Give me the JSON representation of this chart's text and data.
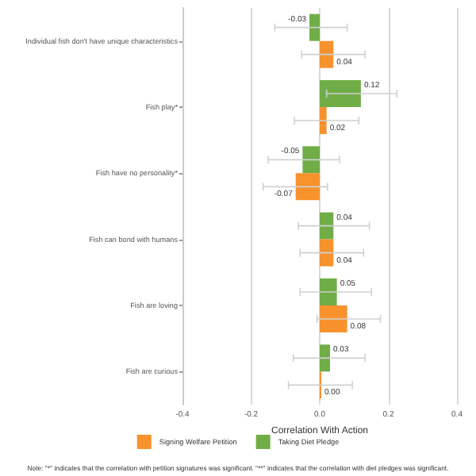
{
  "chart_data": {
    "type": "bar",
    "orientation": "horizontal",
    "xlabel": "Correlation With Action",
    "categories": [
      "Individual fish don't have unique characteristics",
      "Fish play*",
      "Fish have no personality*",
      "Fish can bond with humans",
      "Fish are loving",
      "Fish are curious"
    ],
    "series": [
      {
        "name": "Signing Welfare Petition",
        "color": "#f7922d",
        "values": [
          0.04,
          0.02,
          -0.07,
          0.04,
          0.08,
          0.0
        ],
        "errors": [
          [
            -0.053,
            0.132
          ],
          [
            -0.074,
            0.114
          ],
          [
            -0.165,
            0.023
          ],
          [
            -0.057,
            0.128
          ],
          [
            -0.008,
            0.177
          ],
          [
            -0.091,
            0.095
          ]
        ],
        "value_labels": [
          "0.04",
          "0.02",
          "-0.07",
          "0.04",
          "0.08",
          "0.00"
        ]
      },
      {
        "name": "Taking Diet Pledge",
        "color": "#70ad47",
        "values": [
          -0.03,
          0.12,
          -0.05,
          0.04,
          0.05,
          0.03
        ],
        "errors": [
          [
            -0.131,
            0.08
          ],
          [
            0.02,
            0.225
          ],
          [
            -0.15,
            0.058
          ],
          [
            -0.062,
            0.145
          ],
          [
            -0.057,
            0.151
          ],
          [
            -0.077,
            0.132
          ]
        ],
        "value_labels": [
          "-0.03",
          "0.12",
          "-0.05",
          "0.04",
          "0.05",
          "0.03"
        ]
      }
    ],
    "xlim": [
      -0.4,
      0.4
    ],
    "xticks": [
      -0.4,
      -0.2,
      {
        "value": 0,
        "label": "0.0"
      },
      0.2,
      0.4
    ],
    "grid": "x",
    "legend": "bottom",
    "annotations": [
      "Note: \"*\" indicates that the correlation with petition signatures was significant. \"**\" indicates that the correlation with diet pledges was significant."
    ]
  }
}
